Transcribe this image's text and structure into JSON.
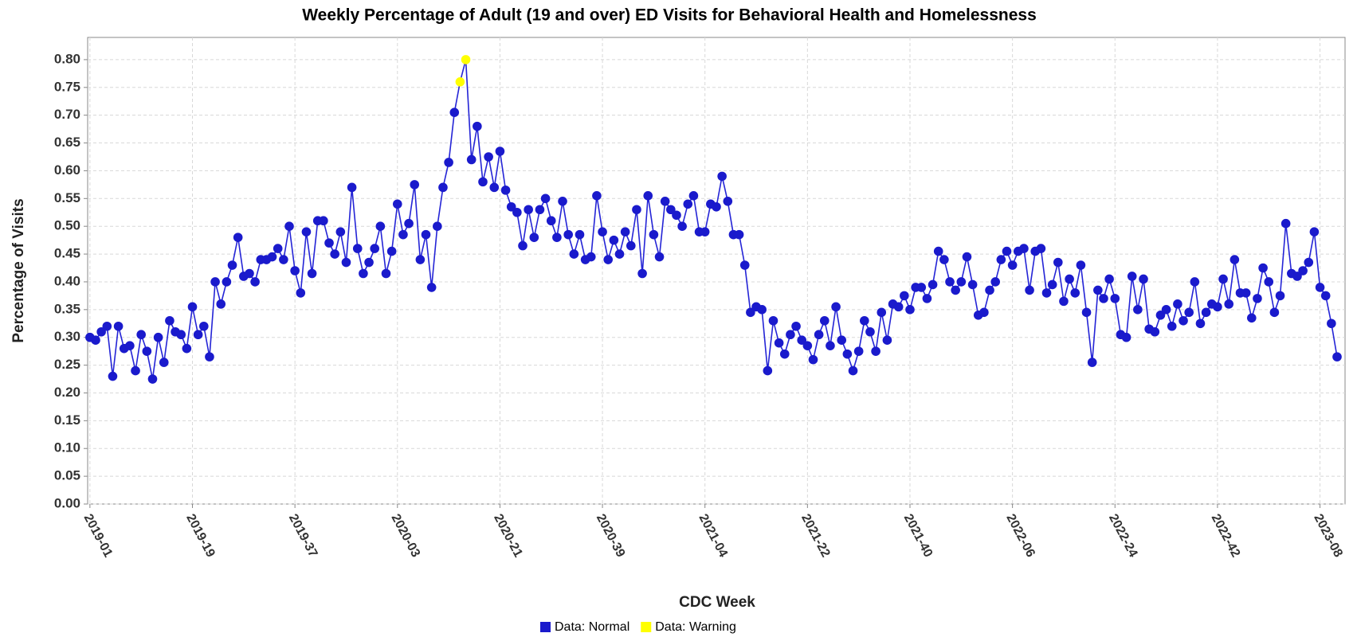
{
  "chart_data": {
    "type": "line",
    "title": "Weekly Percentage of Adult (19 and over) ED Visits for Behavioral Health and Homelessness",
    "x_label": "CDC Week",
    "y_label": "Percentage of Visits",
    "categories": [
      "2019-01",
      null,
      null,
      null,
      null,
      null,
      null,
      null,
      null,
      null,
      null,
      null,
      null,
      null,
      null,
      null,
      null,
      null,
      "2019-19",
      null,
      null,
      null,
      null,
      null,
      null,
      null,
      null,
      null,
      null,
      null,
      null,
      null,
      null,
      null,
      null,
      null,
      "2019-37",
      null,
      null,
      null,
      null,
      null,
      null,
      null,
      null,
      null,
      null,
      null,
      null,
      null,
      null,
      null,
      null,
      null,
      "2020-03",
      null,
      null,
      null,
      null,
      null,
      null,
      null,
      null,
      null,
      null,
      null,
      null,
      null,
      null,
      null,
      null,
      null,
      "2020-21",
      null,
      null,
      null,
      null,
      null,
      null,
      null,
      null,
      null,
      null,
      null,
      null,
      null,
      null,
      null,
      null,
      null,
      "2020-39",
      null,
      null,
      null,
      null,
      null,
      null,
      null,
      null,
      null,
      null,
      null,
      null,
      null,
      null,
      null,
      null,
      null,
      "2021-04",
      null,
      null,
      null,
      null,
      null,
      null,
      null,
      null,
      null,
      null,
      null,
      null,
      null,
      null,
      null,
      null,
      null,
      "2021-22",
      null,
      null,
      null,
      null,
      null,
      null,
      null,
      null,
      null,
      null,
      null,
      null,
      null,
      null,
      null,
      null,
      null,
      "2021-40",
      null,
      null,
      null,
      null,
      null,
      null,
      null,
      null,
      null,
      null,
      null,
      null,
      null,
      null,
      null,
      null,
      null,
      "2022-06",
      null,
      null,
      null,
      null,
      null,
      null,
      null,
      null,
      null,
      null,
      null,
      null,
      null,
      null,
      null,
      null,
      null,
      "2022-24",
      null,
      null,
      null,
      null,
      null,
      null,
      null,
      null,
      null,
      null,
      null,
      null,
      null,
      null,
      null,
      null,
      null,
      "2022-42",
      null,
      null,
      null,
      null,
      null,
      null,
      null,
      null,
      null,
      null,
      null,
      null,
      null,
      null,
      null,
      null,
      null,
      "2023-08",
      null,
      null,
      null
    ],
    "series": [
      {
        "name": "Data: Normal",
        "color": "#1a1acc",
        "values": [
          0.3,
          0.295,
          0.31,
          0.32,
          0.23,
          0.32,
          0.28,
          0.285,
          0.24,
          0.305,
          0.275,
          0.225,
          0.3,
          0.255,
          0.33,
          0.31,
          0.305,
          0.28,
          0.355,
          0.305,
          0.32,
          0.265,
          0.4,
          0.36,
          0.4,
          0.43,
          0.48,
          0.41,
          0.415,
          0.4,
          0.44,
          0.44,
          0.445,
          0.46,
          0.44,
          0.5,
          0.42,
          0.38,
          0.49,
          0.415,
          0.51,
          0.51,
          0.47,
          0.45,
          0.49,
          0.435,
          0.57,
          0.46,
          0.415,
          0.435,
          0.46,
          0.5,
          0.415,
          0.455,
          0.54,
          0.485,
          0.505,
          0.575,
          0.44,
          0.485,
          0.39,
          0.5,
          0.57,
          0.615,
          0.705,
          null,
          null,
          0.62,
          0.68,
          0.58,
          0.625,
          0.57,
          0.635,
          0.565,
          0.535,
          0.525,
          0.465,
          0.53,
          0.48,
          0.53,
          0.55,
          0.51,
          0.48,
          0.545,
          0.485,
          0.45,
          0.485,
          0.44,
          0.445,
          0.555,
          0.49,
          0.44,
          0.475,
          0.45,
          0.49,
          0.465,
          0.53,
          0.415,
          0.555,
          0.485,
          0.445,
          0.545,
          0.53,
          0.52,
          0.5,
          0.54,
          0.555,
          0.49,
          0.49,
          0.54,
          0.535,
          0.59,
          0.545,
          0.485,
          0.485,
          0.43,
          0.345,
          0.355,
          0.35,
          0.24,
          0.33,
          0.29,
          0.27,
          0.305,
          0.32,
          0.295,
          0.285,
          0.26,
          0.305,
          0.33,
          0.285,
          0.355,
          0.295,
          0.27,
          0.24,
          0.275,
          0.33,
          0.31,
          0.275,
          0.345,
          0.295,
          0.36,
          0.355,
          0.375,
          0.35,
          0.39,
          0.39,
          0.37,
          0.395,
          0.455,
          0.44,
          0.4,
          0.385,
          0.4,
          0.445,
          0.395,
          0.34,
          0.345,
          0.385,
          0.4,
          0.44,
          0.455,
          0.43,
          0.455,
          0.46,
          0.385,
          0.455,
          0.46,
          0.38,
          0.395,
          0.435,
          0.365,
          0.405,
          0.38,
          0.43,
          0.345,
          0.255,
          0.385,
          0.37,
          0.405,
          0.37,
          0.305,
          0.3,
          0.41,
          0.35,
          0.405,
          0.315,
          0.31,
          0.34,
          0.35,
          0.32,
          0.36,
          0.33,
          0.345,
          0.4,
          0.325,
          0.345,
          0.36,
          0.355,
          0.405,
          0.36,
          0.44,
          0.38,
          0.38,
          0.335,
          0.37,
          0.425,
          0.4,
          0.345,
          0.375,
          0.505,
          0.415,
          0.41,
          0.42,
          0.435,
          0.49,
          0.39,
          0.375,
          0.325,
          0.265
        ]
      },
      {
        "name": "Data: Warning",
        "color": "#ffff00",
        "values": [
          null,
          null,
          null,
          null,
          null,
          null,
          null,
          null,
          null,
          null,
          null,
          null,
          null,
          null,
          null,
          null,
          null,
          null,
          null,
          null,
          null,
          null,
          null,
          null,
          null,
          null,
          null,
          null,
          null,
          null,
          null,
          null,
          null,
          null,
          null,
          null,
          null,
          null,
          null,
          null,
          null,
          null,
          null,
          null,
          null,
          null,
          null,
          null,
          null,
          null,
          null,
          null,
          null,
          null,
          null,
          null,
          null,
          null,
          null,
          null,
          null,
          null,
          null,
          null,
          null,
          0.76,
          0.8,
          null,
          null,
          null,
          null,
          null,
          null,
          null,
          null,
          null,
          null,
          null,
          null,
          null,
          null,
          null,
          null,
          null,
          null,
          null,
          null,
          null,
          null,
          null,
          null,
          null,
          null,
          null,
          null,
          null,
          null,
          null,
          null,
          null,
          null,
          null,
          null,
          null,
          null,
          null,
          null,
          null,
          null,
          null,
          null,
          null,
          null,
          null,
          null,
          null,
          null,
          null,
          null,
          null,
          null,
          null,
          null,
          null,
          null,
          null,
          null,
          null,
          null,
          null,
          null,
          null,
          null,
          null,
          null,
          null,
          null,
          null,
          null,
          null,
          null,
          null,
          null,
          null,
          null,
          null,
          null,
          null,
          null,
          null,
          null,
          null,
          null,
          null,
          null,
          null,
          null,
          null,
          null,
          null,
          null,
          null,
          null,
          null,
          null,
          null,
          null,
          null,
          null,
          null,
          null,
          null,
          null,
          null,
          null,
          null,
          null,
          null,
          null,
          null,
          null,
          null,
          null,
          null,
          null,
          null,
          null,
          null,
          null,
          null,
          null,
          null,
          null,
          null,
          null,
          null,
          null,
          null,
          null,
          null,
          null,
          null,
          null,
          null,
          null,
          null,
          null,
          null,
          null,
          null,
          null,
          null,
          null,
          null,
          null,
          null,
          null,
          null,
          null,
          null
        ]
      }
    ],
    "line_color": "#2424d6",
    "ylim": [
      0,
      0.84
    ],
    "yticks": [
      {
        "value": 0,
        "label": "0.00"
      },
      {
        "value": 0.05,
        "label": "0.05"
      },
      {
        "value": 0.1,
        "label": "0.10"
      },
      {
        "value": 0.15,
        "label": "0.15"
      },
      {
        "value": 0.2,
        "label": "0.20"
      },
      {
        "value": 0.25,
        "label": "0.25"
      },
      {
        "value": 0.3,
        "label": "0.30"
      },
      {
        "value": 0.35,
        "label": "0.35"
      },
      {
        "value": 0.4,
        "label": "0.40"
      },
      {
        "value": 0.45,
        "label": "0.45"
      },
      {
        "value": 0.5,
        "label": "0.50"
      },
      {
        "value": 0.55,
        "label": "0.55"
      },
      {
        "value": 0.6,
        "label": "0.60"
      },
      {
        "value": 0.65,
        "label": "0.65"
      },
      {
        "value": 0.7,
        "label": "0.70"
      },
      {
        "value": 0.75,
        "label": "0.75"
      },
      {
        "value": 0.8,
        "label": "0.80"
      }
    ],
    "grid": true,
    "legend": "bottom"
  }
}
